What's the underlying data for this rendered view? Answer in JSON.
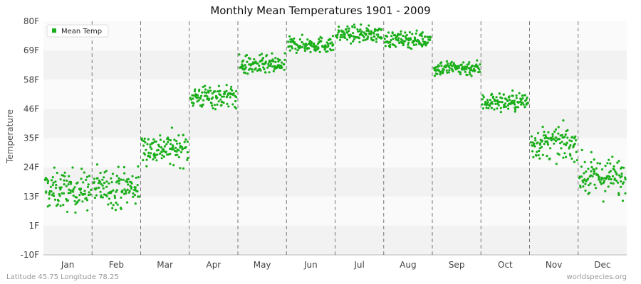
{
  "chart_data": {
    "type": "scatter",
    "title": "Monthly Mean Temperatures 1901 - 2009",
    "xlabel": "",
    "ylabel": "Temperature",
    "yticks": [
      "-10F",
      "1F",
      "13F",
      "24F",
      "35F",
      "46F",
      "58F",
      "69F",
      "80F"
    ],
    "ylim": [
      -10,
      80
    ],
    "categories": [
      "Jan",
      "Feb",
      "Mar",
      "Apr",
      "May",
      "Jun",
      "Jul",
      "Aug",
      "Sep",
      "Oct",
      "Nov",
      "Dec"
    ],
    "grid": "horizontal bands, dashed vertical month separators",
    "legend": {
      "position": "top-left",
      "label": "Mean Temp"
    },
    "series": [
      {
        "name": "Mean Temp",
        "color": "#1aae1a",
        "months": [
          {
            "month": "Jan",
            "mean": 15,
            "spread": 5
          },
          {
            "month": "Feb",
            "mean": 16,
            "spread": 5
          },
          {
            "month": "Mar",
            "mean": 31,
            "spread": 4
          },
          {
            "month": "Apr",
            "mean": 51,
            "spread": 3
          },
          {
            "month": "May",
            "mean": 63,
            "spread": 2.5
          },
          {
            "month": "Jun",
            "mean": 71,
            "spread": 2
          },
          {
            "month": "Jul",
            "mean": 75,
            "spread": 2
          },
          {
            "month": "Aug",
            "mean": 73,
            "spread": 2
          },
          {
            "month": "Sep",
            "mean": 62,
            "spread": 2
          },
          {
            "month": "Oct",
            "mean": 49,
            "spread": 2.5
          },
          {
            "month": "Nov",
            "mean": 33,
            "spread": 4
          },
          {
            "month": "Dec",
            "mean": 20,
            "spread": 5
          }
        ]
      }
    ]
  },
  "footer": {
    "location": "Latitude 45.75 Longitude 78.25",
    "source": "worldspecies.org"
  }
}
